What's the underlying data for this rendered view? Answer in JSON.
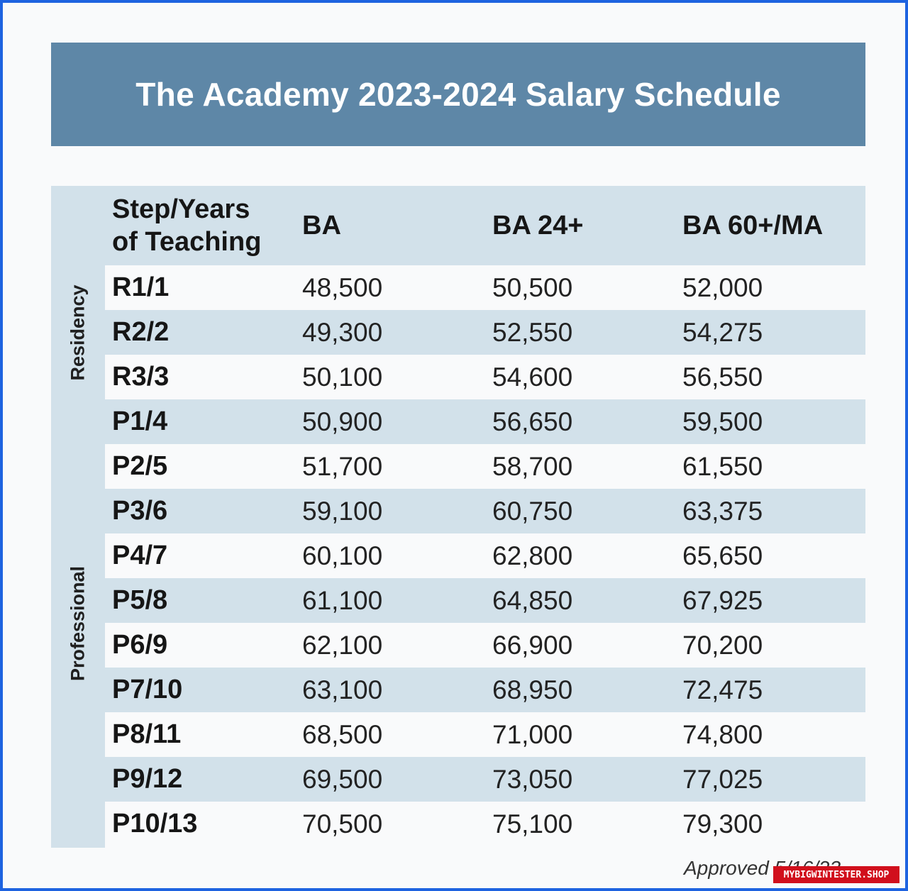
{
  "title": "The Academy 2023-2024 Salary Schedule",
  "side_labels": {
    "residency": "Residency",
    "professional": "Professional"
  },
  "table": {
    "header_step_line1": "Step/Years",
    "header_step_line2": "of Teaching",
    "columns": [
      "BA",
      "BA 24+",
      "BA 60+/MA"
    ],
    "rows": [
      {
        "step": "R1/1",
        "ba": "48,500",
        "ba24": "50,500",
        "ba60": "52,000"
      },
      {
        "step": "R2/2",
        "ba": "49,300",
        "ba24": "52,550",
        "ba60": "54,275"
      },
      {
        "step": "R3/3",
        "ba": "50,100",
        "ba24": "54,600",
        "ba60": "56,550"
      },
      {
        "step": "P1/4",
        "ba": "50,900",
        "ba24": "56,650",
        "ba60": "59,500"
      },
      {
        "step": "P2/5",
        "ba": "51,700",
        "ba24": "58,700",
        "ba60": "61,550"
      },
      {
        "step": "P3/6",
        "ba": "59,100",
        "ba24": "60,750",
        "ba60": "63,375"
      },
      {
        "step": "P4/7",
        "ba": "60,100",
        "ba24": "62,800",
        "ba60": "65,650"
      },
      {
        "step": "P5/8",
        "ba": "61,100",
        "ba24": "64,850",
        "ba60": "67,925"
      },
      {
        "step": "P6/9",
        "ba": "62,100",
        "ba24": "66,900",
        "ba60": "70,200"
      },
      {
        "step": "P7/10",
        "ba": "63,100",
        "ba24": "68,950",
        "ba60": "72,475"
      },
      {
        "step": "P8/11",
        "ba": "68,500",
        "ba24": "71,000",
        "ba60": "74,800"
      },
      {
        "step": "P9/12",
        "ba": "69,500",
        "ba24": "73,050",
        "ba60": "77,025"
      },
      {
        "step": "P10/13",
        "ba": "70,500",
        "ba24": "75,100",
        "ba60": "79,300"
      }
    ]
  },
  "footer_note": "Approved 5/16/23",
  "watermark": "MYBIGWINTESTER.SHOP",
  "colors": {
    "banner": "#5e87a7",
    "band": "#d2e1ea",
    "frame": "#1e63e0"
  }
}
